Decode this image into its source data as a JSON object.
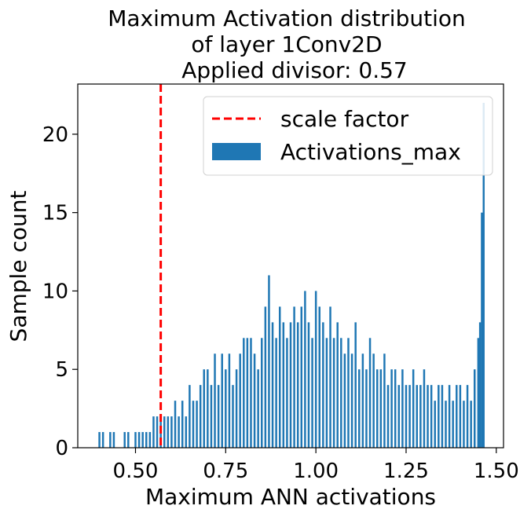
{
  "chart_data": {
    "type": "bar",
    "title_lines": [
      "Maximum Activation distribution",
      "of layer 1Conv2D",
      "Applied divisor: 0.57"
    ],
    "xlabel": "Maximum ANN activations",
    "ylabel": "Sample count",
    "xlim": [
      0.34,
      1.52
    ],
    "ylim": [
      0,
      23.2
    ],
    "x_tick_labels": [
      "0.50",
      "0.75",
      "1.00",
      "1.25",
      "1.50"
    ],
    "x_tick_values": [
      0.5,
      0.75,
      1.0,
      1.25,
      1.5
    ],
    "y_tick_labels": [
      "0",
      "5",
      "10",
      "15",
      "20"
    ],
    "y_tick_values": [
      0,
      5,
      10,
      15,
      20
    ],
    "grid": false,
    "legend_position": "top-right",
    "legend": [
      {
        "label": "scale factor",
        "kind": "dashed-line",
        "color": "#ff0000"
      },
      {
        "label": "Activations_max",
        "kind": "patch",
        "color": "#1f77b4"
      }
    ],
    "scale_factor": 0.57,
    "bar_color": "#1f77b4",
    "line_color": "#ff0000",
    "series": [
      {
        "name": "Activations_max",
        "x": [
          0.4,
          0.41,
          0.43,
          0.44,
          0.47,
          0.48,
          0.5,
          0.51,
          0.52,
          0.53,
          0.54,
          0.55,
          0.56,
          0.57,
          0.58,
          0.59,
          0.6,
          0.61,
          0.62,
          0.63,
          0.64,
          0.65,
          0.66,
          0.67,
          0.68,
          0.69,
          0.7,
          0.71,
          0.72,
          0.73,
          0.74,
          0.75,
          0.76,
          0.77,
          0.78,
          0.79,
          0.8,
          0.81,
          0.82,
          0.83,
          0.84,
          0.85,
          0.86,
          0.87,
          0.88,
          0.89,
          0.9,
          0.91,
          0.92,
          0.93,
          0.94,
          0.95,
          0.96,
          0.97,
          0.98,
          0.99,
          1.0,
          1.01,
          1.02,
          1.03,
          1.04,
          1.05,
          1.06,
          1.07,
          1.08,
          1.09,
          1.1,
          1.11,
          1.12,
          1.13,
          1.14,
          1.15,
          1.16,
          1.17,
          1.18,
          1.19,
          1.2,
          1.21,
          1.22,
          1.23,
          1.24,
          1.25,
          1.26,
          1.27,
          1.28,
          1.29,
          1.3,
          1.31,
          1.32,
          1.33,
          1.34,
          1.35,
          1.36,
          1.37,
          1.38,
          1.39,
          1.4,
          1.41,
          1.42,
          1.43,
          1.44,
          1.45,
          1.455,
          1.46,
          1.465
        ],
        "values": [
          1,
          1,
          1,
          1,
          1,
          1,
          1,
          1,
          1,
          1,
          1,
          2,
          2,
          2,
          2,
          2,
          2,
          3,
          2,
          3,
          2,
          4,
          3,
          3,
          4,
          5,
          5,
          4,
          6,
          4,
          6,
          5,
          6,
          4,
          5,
          6,
          7,
          7,
          7,
          6,
          5,
          7,
          9,
          11,
          8,
          7,
          9,
          8,
          7,
          8,
          9,
          8,
          9,
          10,
          8,
          7,
          10,
          9,
          8,
          7,
          9,
          7,
          8,
          7,
          6,
          7,
          6,
          8,
          5,
          6,
          5,
          7,
          6,
          5,
          5,
          6,
          4,
          5,
          5,
          4,
          5,
          4,
          4,
          5,
          4,
          4,
          5,
          4,
          4,
          3,
          4,
          4,
          3,
          4,
          3,
          4,
          4,
          3,
          4,
          3,
          5,
          7,
          8,
          15,
          22
        ]
      }
    ]
  }
}
